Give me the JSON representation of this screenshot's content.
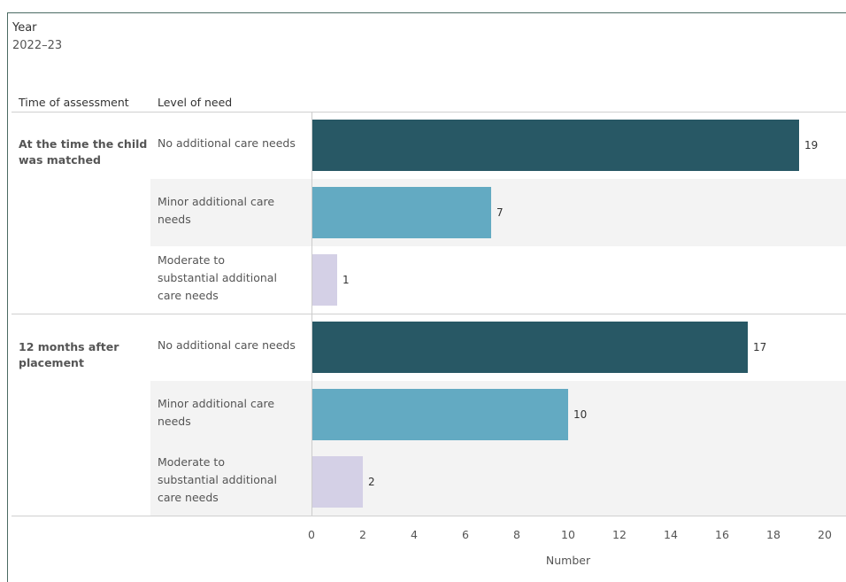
{
  "filter": {
    "label": "Year",
    "value": "2022–23"
  },
  "chart_data": {
    "type": "bar",
    "orientation": "horizontal",
    "title": "",
    "row_headers": [
      "Time of assessment",
      "Level of need"
    ],
    "xlabel": "Number",
    "xlim": [
      0,
      20
    ],
    "xticks": [
      "0",
      "2",
      "4",
      "6",
      "8",
      "10",
      "12",
      "14",
      "16",
      "18",
      "20"
    ],
    "grid": false,
    "colors": {
      "No additional care needs": "#285865",
      "Minor additional care needs": "#63aac2",
      "Moderate to substantial additional care needs": "#d4d0e6"
    },
    "groups": [
      {
        "label": "At the time the child was matched",
        "rows": [
          {
            "category": "No additional care needs",
            "display": "No additional care needs",
            "value": 19
          },
          {
            "category": "Minor additional care needs",
            "display": "Minor additional care needs",
            "value": 7
          },
          {
            "category": "Moderate to substantial additional care needs",
            "display": "Moderate to substantial additional care needs",
            "value": 1
          }
        ]
      },
      {
        "label": "12 months after placement",
        "rows": [
          {
            "category": "No additional care needs",
            "display": "No additional care needs",
            "value": 17
          },
          {
            "category": "Minor additional care needs",
            "display": "Minor additional care needs",
            "value": 10
          },
          {
            "category": "Moderate to substantial additional care needs",
            "display": "Moderate to substantial additional care needs",
            "value": 2
          }
        ]
      }
    ]
  }
}
